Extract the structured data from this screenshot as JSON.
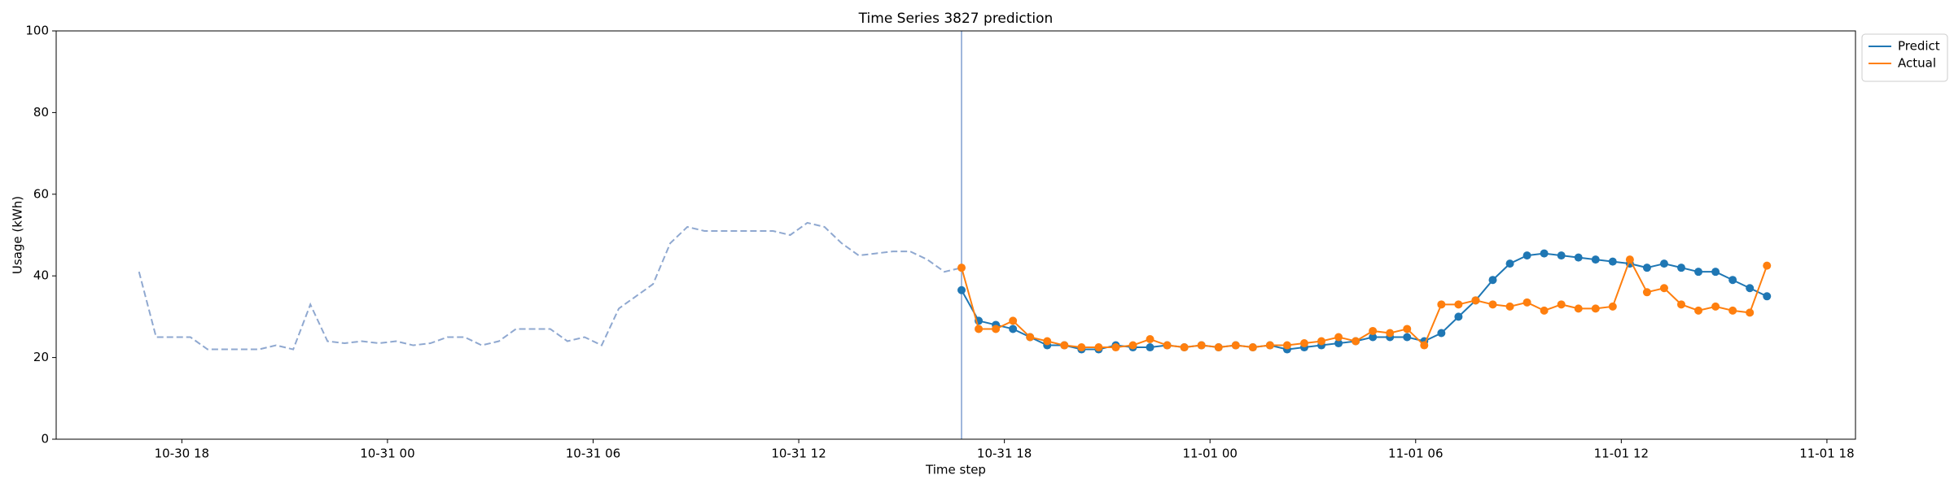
{
  "chart_data": {
    "type": "line",
    "title": "Time Series 3827 prediction",
    "x_label": "Time step",
    "y_label": "Usage (kWh)",
    "xlim": [
      "10-30 14:20",
      "11-01 18:50"
    ],
    "xticks": [
      {
        "value": "10-30 18:00",
        "label": "10-30 18"
      },
      {
        "value": "10-31 00:00",
        "label": "10-31 00"
      },
      {
        "value": "10-31 06:00",
        "label": "10-31 06"
      },
      {
        "value": "10-31 12:00",
        "label": "10-31 12"
      },
      {
        "value": "10-31 18:00",
        "label": "10-31 18"
      },
      {
        "value": "11-01 00:00",
        "label": "11-01 00"
      },
      {
        "value": "11-01 06:00",
        "label": "11-01 06"
      },
      {
        "value": "11-01 12:00",
        "label": "11-01 12"
      },
      {
        "value": "11-01 18:00",
        "label": "11-01 18"
      }
    ],
    "ylim": [
      0,
      100
    ],
    "yticks": [
      0,
      20,
      40,
      60,
      80,
      100
    ],
    "grid": false,
    "legend": "outside upper right",
    "vline_x": "10-31 16:45",
    "vline_color": "#7f9fd0",
    "series": [
      {
        "color": "#8fa8d0",
        "linestyle": "dashed",
        "marker": false,
        "x": [
          "10-30 16:45",
          "10-30 17:15",
          "10-30 17:45",
          "10-30 18:15",
          "10-30 18:45",
          "10-30 19:15",
          "10-30 19:45",
          "10-30 20:15",
          "10-30 20:45",
          "10-30 21:15",
          "10-30 21:45",
          "10-30 22:15",
          "10-30 22:45",
          "10-30 23:15",
          "10-30 23:45",
          "10-31 00:15",
          "10-31 00:45",
          "10-31 01:15",
          "10-31 01:45",
          "10-31 02:15",
          "10-31 02:45",
          "10-31 03:15",
          "10-31 03:45",
          "10-31 04:15",
          "10-31 04:45",
          "10-31 05:15",
          "10-31 05:45",
          "10-31 06:15",
          "10-31 06:45",
          "10-31 07:15",
          "10-31 07:45",
          "10-31 08:15",
          "10-31 08:45",
          "10-31 09:15",
          "10-31 09:45",
          "10-31 10:15",
          "10-31 10:45",
          "10-31 11:15",
          "10-31 11:45",
          "10-31 12:15",
          "10-31 12:45",
          "10-31 13:15",
          "10-31 13:45",
          "10-31 14:15",
          "10-31 14:45",
          "10-31 15:15",
          "10-31 15:45",
          "10-31 16:15",
          "10-31 16:45"
        ],
        "values": [
          41,
          25,
          25,
          25,
          22,
          22,
          22,
          22,
          23,
          22,
          33,
          24,
          23.5,
          24,
          23.5,
          24,
          23,
          23.5,
          25,
          25,
          23,
          24,
          27,
          27,
          27,
          24,
          25,
          23,
          32,
          35,
          38,
          48,
          52,
          51,
          51,
          51,
          51,
          51,
          50,
          53,
          52,
          48,
          45,
          45.5,
          46,
          46,
          44,
          41,
          42
        ]
      },
      {
        "name": "Predict",
        "color": "#1f77b4",
        "linestyle": "solid",
        "marker": true,
        "x": [
          "10-31 16:45",
          "10-31 17:15",
          "10-31 17:45",
          "10-31 18:15",
          "10-31 18:45",
          "10-31 19:15",
          "10-31 19:45",
          "10-31 20:15",
          "10-31 20:45",
          "10-31 21:15",
          "10-31 21:45",
          "10-31 22:15",
          "10-31 22:45",
          "10-31 23:15",
          "10-31 23:45",
          "11-01 00:15",
          "11-01 00:45",
          "11-01 01:15",
          "11-01 01:45",
          "11-01 02:15",
          "11-01 02:45",
          "11-01 03:15",
          "11-01 03:45",
          "11-01 04:15",
          "11-01 04:45",
          "11-01 05:15",
          "11-01 05:45",
          "11-01 06:15",
          "11-01 06:45",
          "11-01 07:15",
          "11-01 07:45",
          "11-01 08:15",
          "11-01 08:45",
          "11-01 09:15",
          "11-01 09:45",
          "11-01 10:15",
          "11-01 10:45",
          "11-01 11:15",
          "11-01 11:45",
          "11-01 12:15",
          "11-01 12:45",
          "11-01 13:15",
          "11-01 13:45",
          "11-01 14:15",
          "11-01 14:45",
          "11-01 15:15",
          "11-01 15:45",
          "11-01 16:15"
        ],
        "values": [
          36.5,
          29,
          28,
          27,
          25,
          23,
          23,
          22,
          22,
          23,
          22.5,
          22.5,
          23,
          22.5,
          23,
          22.5,
          23,
          22.5,
          23,
          22,
          22.5,
          23,
          23.5,
          24,
          25,
          25,
          25,
          24,
          26,
          30,
          34,
          39,
          43,
          45,
          45.5,
          45,
          44.5,
          44,
          43.5,
          43,
          42,
          43,
          42,
          41,
          41,
          39,
          37,
          35
        ]
      },
      {
        "name": "Actual",
        "color": "#ff7f0e",
        "linestyle": "solid",
        "marker": true,
        "x": [
          "10-31 16:45",
          "10-31 17:15",
          "10-31 17:45",
          "10-31 18:15",
          "10-31 18:45",
          "10-31 19:15",
          "10-31 19:45",
          "10-31 20:15",
          "10-31 20:45",
          "10-31 21:15",
          "10-31 21:45",
          "10-31 22:15",
          "10-31 22:45",
          "10-31 23:15",
          "10-31 23:45",
          "11-01 00:15",
          "11-01 00:45",
          "11-01 01:15",
          "11-01 01:45",
          "11-01 02:15",
          "11-01 02:45",
          "11-01 03:15",
          "11-01 03:45",
          "11-01 04:15",
          "11-01 04:45",
          "11-01 05:15",
          "11-01 05:45",
          "11-01 06:15",
          "11-01 06:45",
          "11-01 07:15",
          "11-01 07:45",
          "11-01 08:15",
          "11-01 08:45",
          "11-01 09:15",
          "11-01 09:45",
          "11-01 10:15",
          "11-01 10:45",
          "11-01 11:15",
          "11-01 11:45",
          "11-01 12:15",
          "11-01 12:45",
          "11-01 13:15",
          "11-01 13:45",
          "11-01 14:15",
          "11-01 14:45",
          "11-01 15:15",
          "11-01 15:45",
          "11-01 16:15"
        ],
        "values": [
          42,
          27,
          27,
          29,
          25,
          24,
          23,
          22.5,
          22.5,
          22.5,
          23,
          24.5,
          23,
          22.5,
          23,
          22.5,
          23,
          22.5,
          23,
          23,
          23.5,
          24,
          25,
          24,
          26.5,
          26,
          27,
          23,
          33,
          33,
          34,
          33,
          32.5,
          33.5,
          31.5,
          33,
          32,
          32,
          32.5,
          44,
          36,
          37,
          33,
          31.5,
          32.5,
          31.5,
          31,
          42.5
        ]
      }
    ]
  }
}
